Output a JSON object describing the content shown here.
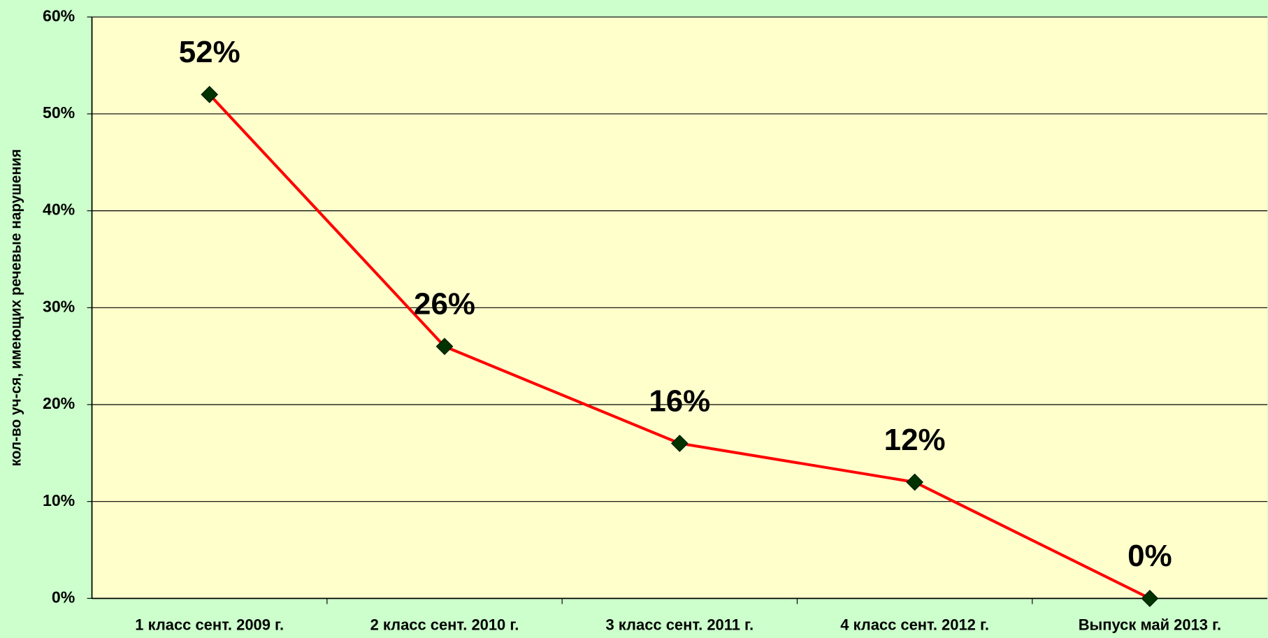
{
  "chart_data": {
    "type": "line",
    "y_label": "кол-во уч-ся, имеющих речевые нарушения",
    "categories": [
      "1 класс сент. 2009 г.",
      "2 класс сент. 2010 г.",
      "3 класс сент. 2011 г.",
      "4 класс сент. 2012 г.",
      "Выпуск май 2013 г."
    ],
    "values": [
      52,
      26,
      16,
      12,
      0
    ],
    "value_labels": [
      "52%",
      "26%",
      "16%",
      "12%",
      "0%"
    ],
    "color": "#ff0000",
    "marker_color": "#003300",
    "ylim": [
      0,
      60
    ],
    "yticks": [
      {
        "value": 0,
        "label": "0%"
      },
      {
        "value": 10,
        "label": "10%"
      },
      {
        "value": 20,
        "label": "20%"
      },
      {
        "value": 30,
        "label": "30%"
      },
      {
        "value": 40,
        "label": "40%"
      },
      {
        "value": 50,
        "label": "50%"
      },
      {
        "value": 60,
        "label": "60%"
      }
    ],
    "grid": true
  }
}
